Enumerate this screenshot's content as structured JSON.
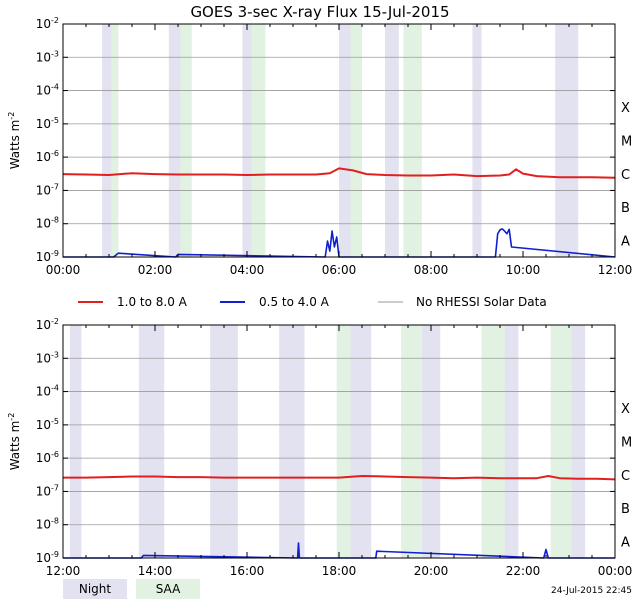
{
  "title": "GOES 3-sec X-ray Flux   15-Jul-2015",
  "ylabel": "Watts m",
  "ylabel_exp": "-2",
  "footer_stamp": "24-Jul-2015 22:45",
  "legend": {
    "series": [
      {
        "label": "1.0 to 8.0 A",
        "color": "#e02020"
      },
      {
        "label": "0.5 to 4.0 A",
        "color": "#1020d0"
      },
      {
        "label": "No RHESSI Solar Data",
        "color": "#9a9a9a"
      }
    ],
    "bands": [
      {
        "label": "Night",
        "color": "#e2e2f1"
      },
      {
        "label": "SAA",
        "color": "#e2f2e2"
      }
    ]
  },
  "chart_data": [
    {
      "type": "line",
      "panel": "top",
      "y_scale": "log",
      "ylim": [
        1e-09,
        0.01
      ],
      "y_ticks": [
        {
          "base": "10",
          "exp": "-2"
        },
        {
          "base": "10",
          "exp": "-3"
        },
        {
          "base": "10",
          "exp": "-4"
        },
        {
          "base": "10",
          "exp": "-5"
        },
        {
          "base": "10",
          "exp": "-6"
        },
        {
          "base": "10",
          "exp": "-7"
        },
        {
          "base": "10",
          "exp": "-8"
        },
        {
          "base": "10",
          "exp": "-9"
        }
      ],
      "classes": [
        "X",
        "M",
        "C",
        "B",
        "A"
      ],
      "xlim": [
        0,
        12
      ],
      "x_ticks": [
        "00:00",
        "02:00",
        "04:00",
        "06:00",
        "08:00",
        "10:00",
        "12:00"
      ],
      "night_intervals": [
        [
          0.85,
          1.2
        ],
        [
          2.3,
          2.6
        ],
        [
          3.9,
          4.1
        ],
        [
          6.0,
          6.3
        ],
        [
          7.0,
          7.3
        ],
        [
          8.9,
          9.1
        ],
        [
          10.7,
          11.2
        ]
      ],
      "saa_intervals": [
        [
          1.05,
          1.2
        ],
        [
          2.55,
          2.8
        ],
        [
          4.1,
          4.4
        ],
        [
          6.25,
          6.5
        ],
        [
          7.4,
          7.8
        ]
      ],
      "series": [
        {
          "name": "1.0 to 8.0 A",
          "x": [
            0,
            0.5,
            1,
            1.5,
            2,
            2.5,
            3,
            3.5,
            4,
            4.5,
            5,
            5.5,
            5.8,
            6.0,
            6.3,
            6.6,
            7,
            7.5,
            8,
            8.5,
            9,
            9.5,
            9.7,
            9.85,
            10,
            10.3,
            10.8,
            11.5,
            12
          ],
          "y": [
            3.1e-07,
            3e-07,
            2.9e-07,
            3.3e-07,
            3.1e-07,
            3e-07,
            3e-07,
            3e-07,
            2.9e-07,
            3e-07,
            3e-07,
            3e-07,
            3.3e-07,
            4.6e-07,
            4e-07,
            3.1e-07,
            2.9e-07,
            2.8e-07,
            2.8e-07,
            3e-07,
            2.7e-07,
            2.8e-07,
            3e-07,
            4.3e-07,
            3.2e-07,
            2.7e-07,
            2.5e-07,
            2.5e-07,
            2.4e-07
          ]
        },
        {
          "name": "0.5 to 4.0 A",
          "x": [
            0,
            1.1,
            1.2,
            2.45,
            2.5,
            5.7,
            5.75,
            5.8,
            5.85,
            5.9,
            5.95,
            6.0,
            9.4,
            9.45,
            9.5,
            9.55,
            9.6,
            9.65,
            9.7,
            9.75,
            12
          ],
          "y": [
            1e-09,
            1e-09,
            1.3e-09,
            1e-09,
            1.2e-09,
            1e-09,
            3e-09,
            1.5e-09,
            6e-09,
            2e-09,
            4e-09,
            1e-09,
            1e-09,
            5e-09,
            6.5e-09,
            7e-09,
            6e-09,
            5e-09,
            6.8e-09,
            2e-09,
            1e-09
          ]
        }
      ]
    },
    {
      "type": "line",
      "panel": "bottom",
      "y_scale": "log",
      "ylim": [
        1e-09,
        0.01
      ],
      "y_ticks": [
        {
          "base": "10",
          "exp": "-2"
        },
        {
          "base": "10",
          "exp": "-3"
        },
        {
          "base": "10",
          "exp": "-4"
        },
        {
          "base": "10",
          "exp": "-5"
        },
        {
          "base": "10",
          "exp": "-6"
        },
        {
          "base": "10",
          "exp": "-7"
        },
        {
          "base": "10",
          "exp": "-8"
        },
        {
          "base": "10",
          "exp": "-9"
        }
      ],
      "classes": [
        "X",
        "M",
        "C",
        "B",
        "A"
      ],
      "xlim": [
        12,
        24
      ],
      "x_ticks": [
        "12:00",
        "14:00",
        "16:00",
        "18:00",
        "20:00",
        "22:00",
        "00:00"
      ],
      "night_intervals": [
        [
          12.15,
          12.4
        ],
        [
          13.65,
          14.2
        ],
        [
          15.2,
          15.8
        ],
        [
          16.7,
          17.25
        ],
        [
          18.25,
          18.7
        ],
        [
          19.8,
          20.2
        ],
        [
          21.6,
          21.9
        ],
        [
          23.05,
          23.35
        ]
      ],
      "saa_intervals": [
        [
          17.95,
          18.25
        ],
        [
          19.35,
          19.8
        ],
        [
          21.1,
          21.6
        ],
        [
          22.6,
          23.05
        ]
      ],
      "series": [
        {
          "name": "1.0 to 8.0 A",
          "x": [
            12,
            12.5,
            13,
            13.5,
            14,
            14.5,
            15,
            15.5,
            16,
            16.5,
            17,
            17.5,
            18,
            18.5,
            19,
            19.5,
            20,
            20.5,
            21,
            21.5,
            22,
            22.3,
            22.55,
            22.8,
            23.2,
            23.6,
            24
          ],
          "y": [
            2.6e-07,
            2.6e-07,
            2.7e-07,
            2.8e-07,
            2.8e-07,
            2.7e-07,
            2.7e-07,
            2.6e-07,
            2.6e-07,
            2.6e-07,
            2.6e-07,
            2.6e-07,
            2.6e-07,
            2.9e-07,
            2.8e-07,
            2.7e-07,
            2.6e-07,
            2.5e-07,
            2.6e-07,
            2.5e-07,
            2.5e-07,
            2.5e-07,
            2.9e-07,
            2.5e-07,
            2.4e-07,
            2.4e-07,
            2.3e-07
          ]
        },
        {
          "name": "0.5 to 4.0 A",
          "x": [
            12,
            13.7,
            13.75,
            17.1,
            17.12,
            17.14,
            18.8,
            18.82,
            22.45,
            22.5,
            22.55,
            24
          ],
          "y": [
            1e-09,
            1e-09,
            1.2e-09,
            1e-09,
            2.8e-09,
            1e-09,
            1e-09,
            1.6e-09,
            1e-09,
            1.8e-09,
            1e-09,
            1e-09
          ]
        }
      ]
    }
  ]
}
